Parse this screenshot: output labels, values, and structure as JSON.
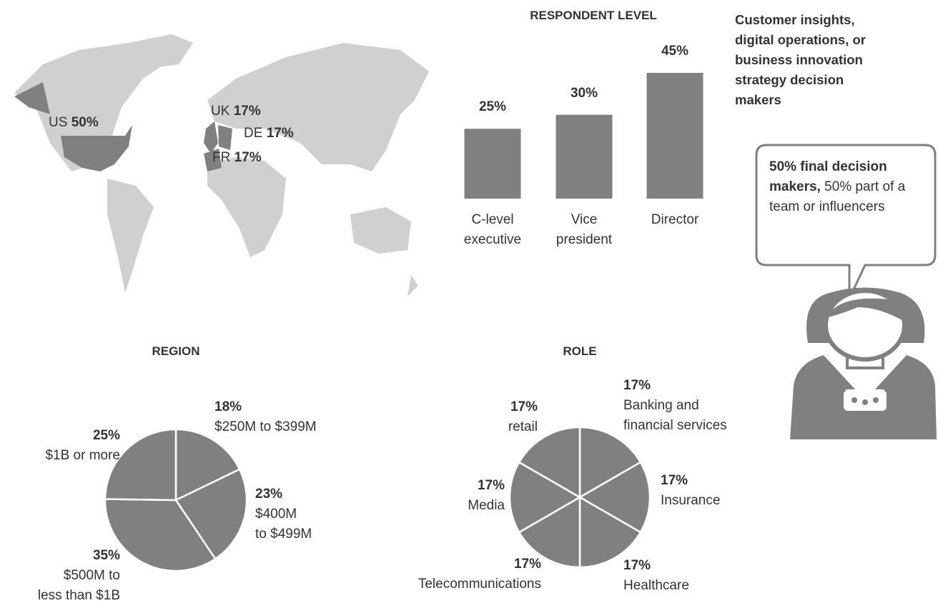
{
  "chart_data": [
    {
      "type": "map",
      "categories": [
        "US",
        "UK",
        "DE",
        "FR"
      ],
      "values": [
        50,
        17,
        17,
        17
      ],
      "value_labels": [
        "50%",
        "17%",
        "17%",
        "17%"
      ],
      "color": "#808080"
    },
    {
      "type": "bar",
      "title": "RESPONDENT LEVEL",
      "categories": [
        "C-level\nexecutive",
        "Vice\npresident",
        "Director"
      ],
      "values": [
        25,
        30,
        45
      ],
      "value_labels": [
        "25%",
        "30%",
        "45%"
      ],
      "color": "#808080"
    },
    {
      "type": "pie",
      "title": "REGION",
      "categories": [
        "$250M to $399M",
        "$400M\nto $499M",
        "$500M to\nless than $1B",
        "$1B or more"
      ],
      "values": [
        18,
        23,
        35,
        25
      ],
      "value_labels": [
        "18%",
        "23%",
        "35%",
        "25%"
      ],
      "color": "#808080"
    },
    {
      "type": "pie",
      "title": "ROLE",
      "categories": [
        "Banking and\nfinancial services",
        "Insurance",
        "Healthcare",
        "Telecommunications",
        "Media",
        "retail"
      ],
      "values": [
        17,
        17,
        17,
        17,
        17,
        17
      ],
      "value_labels": [
        "17%",
        "17%",
        "17%",
        "17%",
        "17%",
        "17%"
      ],
      "color": "#808080"
    }
  ],
  "audience": "Customer insights,\ndigital operations, or\nbusiness innovation\nstrategy decision\nmakers",
  "callout": {
    "bold": "50% final decision makers,",
    "text": "50% part of a team or influencers"
  }
}
